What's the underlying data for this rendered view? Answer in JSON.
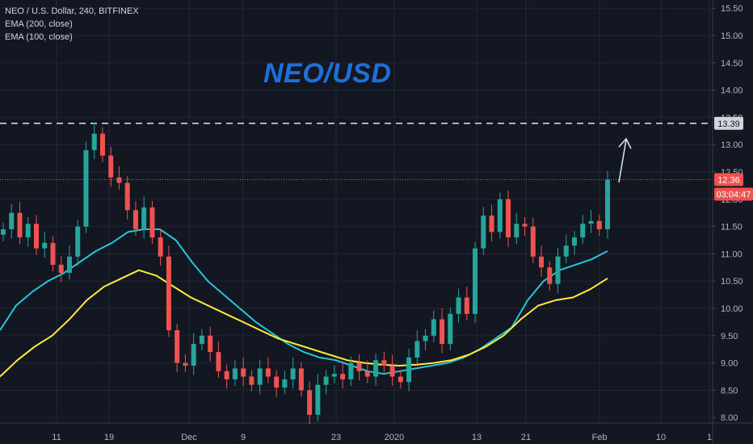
{
  "header": {
    "symbol_line": "NEO / U.S. Dollar, 240, BITFINEX",
    "indicator_1": "EMA (200, close)",
    "indicator_2": "EMA (100, close)"
  },
  "chart_data": {
    "type": "line",
    "title": "NEO/USD",
    "x_ticks": [
      "11",
      "19",
      "Dec",
      "9",
      "23",
      "2020",
      "13",
      "21",
      "Feb",
      "10",
      "1"
    ],
    "y_ticks": [
      "15.50",
      "15.00",
      "14.50",
      "14.00",
      "13.50",
      "13.00",
      "12.50",
      "12.00",
      "11.50",
      "11.00",
      "10.50",
      "10.00",
      "9.50",
      "9.00",
      "8.50",
      "8.00"
    ],
    "ylim": [
      7.9,
      15.65
    ],
    "grid": true,
    "series": [
      {
        "name": "NEO / U.S. Dollar",
        "style": "candles",
        "values": [
          11.45,
          11.75,
          11.3,
          11.55,
          11.1,
          11.2,
          10.8,
          10.65,
          10.95,
          11.5,
          12.9,
          13.2,
          12.8,
          12.4,
          12.3,
          11.8,
          11.45,
          11.85,
          11.3,
          10.95,
          9.6,
          9.0,
          8.95,
          9.35,
          9.5,
          9.2,
          8.85,
          8.7,
          8.9,
          8.75,
          8.6,
          8.9,
          8.75,
          8.55,
          8.7,
          8.9,
          8.5,
          8.05,
          8.6,
          8.75,
          8.8,
          8.7,
          9.0,
          8.85,
          8.75,
          9.05,
          8.95,
          8.75,
          8.65,
          9.1,
          9.4,
          9.5,
          9.8,
          9.35,
          9.9,
          10.2,
          9.9,
          11.1,
          11.7,
          11.4,
          12.0,
          11.3,
          11.55,
          11.5,
          10.95,
          10.75,
          10.45,
          10.95,
          11.15,
          11.3,
          11.55,
          11.6,
          11.45,
          12.36
        ]
      },
      {
        "name": "EMA (100, close)",
        "color": "#26c6da",
        "values": [
          9.6,
          10.05,
          10.3,
          10.5,
          10.65,
          10.85,
          11.05,
          11.2,
          11.4,
          11.45,
          11.45,
          11.25,
          10.85,
          10.5,
          10.25,
          10.0,
          9.75,
          9.55,
          9.35,
          9.2,
          9.1,
          9.05,
          8.95,
          8.85,
          8.8,
          8.85,
          8.9,
          8.95,
          9.0,
          9.1,
          9.25,
          9.45,
          9.65,
          10.15,
          10.5,
          10.7,
          10.8,
          10.9,
          11.05
        ]
      },
      {
        "name": "EMA (200, close)",
        "color": "#ffeb3b",
        "values": [
          8.75,
          9.05,
          9.3,
          9.5,
          9.8,
          10.15,
          10.4,
          10.55,
          10.7,
          10.6,
          10.4,
          10.2,
          10.05,
          9.9,
          9.75,
          9.6,
          9.45,
          9.35,
          9.25,
          9.15,
          9.05,
          9.0,
          8.97,
          8.95,
          8.97,
          9.0,
          9.05,
          9.15,
          9.3,
          9.5,
          9.8,
          10.05,
          10.15,
          10.2,
          10.35,
          10.55
        ]
      }
    ],
    "reference_line": {
      "value": 13.39,
      "label": "13.39",
      "style": "dashed"
    },
    "last_price": {
      "label": "12.36",
      "countdown": "03:04:47",
      "color": "#ef5350"
    },
    "annotation": "arrow-up"
  }
}
